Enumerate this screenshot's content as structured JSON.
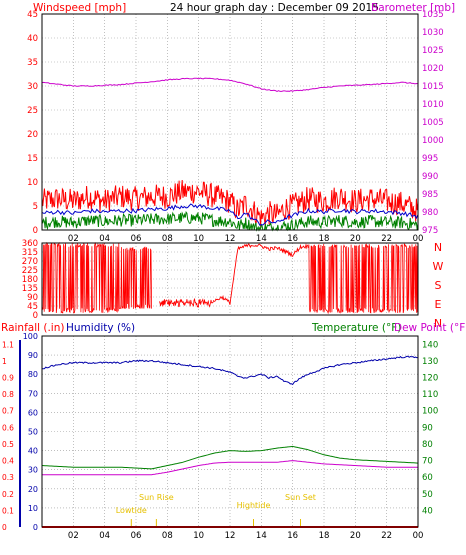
{
  "header": {
    "left_label": "Windspeed [mph]",
    "title": "24 hour graph day : December 09 2015",
    "right_label": "Barometer [mb]"
  },
  "colors": {
    "windspeed": "#ff0000",
    "windgust": "#ff0000",
    "wind_avg": "#0000cc",
    "wind_low": "#008000",
    "barometer": "#cc00cc",
    "direction": "#ff0000",
    "humidity": "#0000aa",
    "temperature": "#008000",
    "dewpoint": "#cc00cc",
    "rainfall": "#ff0000",
    "events": "#e6c000",
    "grid": "#999999",
    "frame": "#000000"
  },
  "chart_data": [
    {
      "type": "line",
      "name": "wind-barometer",
      "title": "24 hour graph day : December 09 2015",
      "ylabel": "Windspeed [mph]",
      "y2label": "Barometer [mb]",
      "ylim": [
        0,
        45
      ],
      "y2lim": [
        975,
        1035
      ],
      "yticks": [
        0,
        5,
        10,
        15,
        20,
        25,
        30,
        35,
        40,
        45
      ],
      "y2ticks": [
        975,
        980,
        985,
        990,
        995,
        1000,
        1005,
        1010,
        1015,
        1020,
        1025,
        1030,
        1035
      ],
      "xlim": [
        0,
        24
      ],
      "xticks": [
        "02",
        "04",
        "06",
        "08",
        "10",
        "12",
        "14",
        "16",
        "18",
        "20",
        "22",
        "00"
      ],
      "grid": true,
      "series": [
        {
          "key": "gust",
          "axis": "left",
          "x": [
            0,
            1,
            2,
            3,
            4,
            5,
            6,
            7,
            8,
            9,
            10,
            11,
            12,
            12.5,
            13,
            13.5,
            14,
            14.5,
            15,
            15.5,
            16,
            17,
            18,
            19,
            20,
            21,
            22,
            23,
            24
          ],
          "values": [
            6,
            6.5,
            6,
            7,
            6,
            7,
            6.5,
            7,
            7,
            8,
            8,
            7,
            6,
            4,
            5.5,
            4,
            2.5,
            3.5,
            3,
            4.5,
            5,
            6.5,
            6,
            7,
            6,
            6.5,
            6,
            5.5,
            4
          ]
        },
        {
          "key": "avg",
          "axis": "left",
          "x": [
            0,
            1,
            2,
            3,
            4,
            5,
            6,
            7,
            8,
            9,
            10,
            11,
            12,
            12.5,
            13,
            13.5,
            14,
            14.5,
            15,
            15.5,
            16,
            17,
            18,
            19,
            20,
            21,
            22,
            23,
            24
          ],
          "values": [
            3.5,
            3.8,
            3.5,
            4,
            3.8,
            4,
            4,
            4.3,
            4.5,
            5,
            5,
            4.5,
            4,
            2.5,
            3.5,
            2.2,
            1.2,
            1.8,
            1.5,
            2.5,
            3,
            4,
            3.8,
            4.2,
            3.8,
            4,
            3.8,
            3.5,
            2.8
          ]
        },
        {
          "key": "low",
          "axis": "left",
          "x": [
            0,
            1,
            2,
            3,
            4,
            5,
            6,
            7,
            8,
            9,
            10,
            11,
            12,
            12.5,
            13,
            13.5,
            14,
            14.5,
            15,
            15.5,
            16,
            17,
            18,
            19,
            20,
            21,
            22,
            23,
            24
          ],
          "values": [
            1.5,
            1.8,
            1.5,
            2,
            1.8,
            2,
            2,
            2.2,
            2.3,
            2.5,
            2.5,
            2,
            1.8,
            0.8,
            1.5,
            0.6,
            0.2,
            0.5,
            0.4,
            0.8,
            1,
            1.8,
            1.6,
            2,
            1.6,
            1.8,
            1.6,
            1.5,
            1
          ]
        },
        {
          "key": "barometer",
          "axis": "right",
          "x": [
            0,
            1,
            2,
            3,
            4,
            5,
            6,
            7,
            8,
            9,
            10,
            11,
            12,
            13,
            14,
            15,
            16,
            17,
            18,
            19,
            20,
            21,
            22,
            23,
            24
          ],
          "values": [
            1016,
            1015.5,
            1015,
            1015,
            1015.2,
            1015.4,
            1015.8,
            1016.2,
            1016.7,
            1017,
            1017.1,
            1017,
            1016.6,
            1015.6,
            1014.2,
            1013.6,
            1013.6,
            1014,
            1014.6,
            1015,
            1015.2,
            1015.4,
            1015.7,
            1016,
            1015.6
          ]
        }
      ]
    },
    {
      "type": "scatter",
      "name": "wind-direction",
      "ylim": [
        0,
        360
      ],
      "yticks": [
        0,
        45,
        90,
        135,
        180,
        225,
        270,
        315,
        360
      ],
      "compass_labels": [
        "N",
        "W",
        "S",
        "E",
        "N"
      ],
      "xlim": [
        0,
        24
      ],
      "grid": true,
      "band_series": [
        {
          "key": "night_band",
          "from": 0,
          "to": 5,
          "low": 10,
          "high": 360
        },
        {
          "key": "morning_band",
          "from": 5,
          "to": 7,
          "low": 30,
          "high": 340
        },
        {
          "key": "calm_band",
          "from": 7.5,
          "to": 11,
          "low": 40,
          "high": 80
        },
        {
          "key": "late_band",
          "from": 17,
          "to": 24,
          "low": 10,
          "high": 355
        }
      ],
      "series": [
        {
          "key": "direction_afternoon",
          "x": [
            11,
            11.5,
            12,
            12.5,
            13,
            13.5,
            14,
            14.5,
            15,
            15.5,
            16,
            16.5,
            17
          ],
          "values": [
            70,
            90,
            60,
            330,
            345,
            350,
            345,
            330,
            335,
            320,
            300,
            340,
            345
          ]
        }
      ]
    },
    {
      "type": "line",
      "name": "humidity-temperature",
      "left_label": "Rainfall (.in)",
      "mid_label": "Humidity (%)",
      "right_labels": [
        "Temperature (°F)",
        "Dew Point (°F)"
      ],
      "rain_ticks": [
        "0",
        "0.1",
        "0.2",
        "0.3",
        "0.4",
        "0.5",
        "0.6",
        "0.7",
        "0.8",
        "0.9",
        "1",
        "1.1"
      ],
      "ylim": [
        0,
        100
      ],
      "yticks": [
        0,
        10,
        20,
        30,
        40,
        50,
        60,
        70,
        80,
        90,
        100
      ],
      "y2lim": [
        30,
        145
      ],
      "y2ticks": [
        40,
        50,
        60,
        70,
        80,
        90,
        100,
        110,
        120,
        130,
        140
      ],
      "xlim": [
        0,
        24
      ],
      "xticks": [
        "02",
        "04",
        "06",
        "08",
        "10",
        "12",
        "14",
        "16",
        "18",
        "20",
        "22",
        "00"
      ],
      "grid": true,
      "series": [
        {
          "key": "humidity",
          "axis": "left",
          "x": [
            0,
            1,
            2,
            3,
            4,
            5,
            6,
            7,
            8,
            9,
            10,
            11,
            12,
            12.5,
            13,
            13.5,
            14,
            14.5,
            15,
            15.5,
            16,
            16.5,
            17,
            18,
            19,
            20,
            21,
            22,
            23,
            24
          ],
          "values": [
            83,
            85,
            86,
            86,
            86,
            86,
            87,
            87,
            86,
            85,
            84,
            83,
            81,
            79,
            78,
            79,
            80,
            78,
            79,
            76,
            75,
            78,
            80,
            83,
            85,
            86,
            87,
            88,
            89,
            89
          ]
        },
        {
          "key": "temperature",
          "axis": "right",
          "x": [
            0,
            1,
            2,
            3,
            4,
            5,
            6,
            7,
            8,
            9,
            10,
            11,
            12,
            13,
            14,
            15,
            16,
            17,
            18,
            19,
            20,
            21,
            22,
            23,
            24
          ],
          "values": [
            67,
            66.5,
            66,
            66,
            66,
            66,
            65.5,
            65,
            67,
            69,
            72,
            74.5,
            76,
            75.5,
            76,
            77.5,
            78.5,
            76.5,
            73.5,
            71.5,
            70.5,
            70,
            69.5,
            69,
            68.5
          ]
        },
        {
          "key": "dewpoint",
          "axis": "right",
          "x": [
            0,
            1,
            2,
            3,
            4,
            5,
            6,
            7,
            8,
            9,
            10,
            11,
            12,
            13,
            14,
            15,
            16,
            17,
            18,
            19,
            20,
            21,
            22,
            23,
            24
          ],
          "values": [
            61.5,
            61.5,
            61.5,
            61.5,
            61.5,
            61.5,
            61.5,
            61.5,
            63,
            65,
            67,
            68.5,
            69,
            69,
            69,
            69,
            70,
            69,
            68,
            67.5,
            67,
            66.5,
            66,
            66,
            66
          ]
        },
        {
          "key": "rainfall",
          "axis": "left",
          "x": [
            0,
            24
          ],
          "values": [
            0,
            0
          ]
        }
      ],
      "events": [
        {
          "label": "Lowtide",
          "x": 5.7
        },
        {
          "label": "Sun Rise",
          "x": 7.3
        },
        {
          "label": "Hightide",
          "x": 13.5
        },
        {
          "label": "Sun Set",
          "x": 16.5
        }
      ]
    }
  ]
}
